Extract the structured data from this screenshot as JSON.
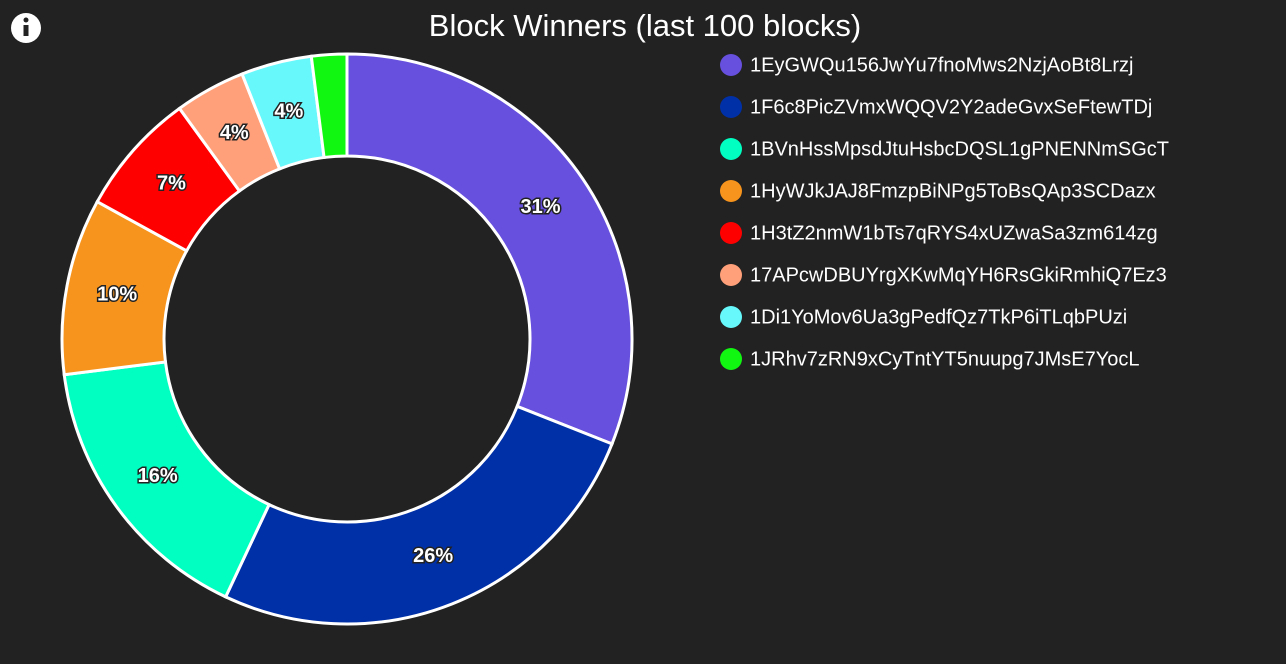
{
  "chart_data": {
    "type": "donut",
    "title": "Block Winners (last 100 blocks)",
    "categories": [
      "1EyGWQu156JwYu7fnoMws2NzjAoBt8Lrzj",
      "1F6c8PicZVmxWQQV2Y2adeGvxSeFtewTDj",
      "1BVnHssMpsdJtuHsbcDQSL1gPNENNmSGcT",
      "1HyWJkJAJ8FmzpBiNPg5ToBsQAp3SCDazx",
      "1H3tZ2nmW1bTs7qRYS4xUZwaSa3zm614zg",
      "17APcwDBUYrgXKwMqYH6RsGkiRmhiQ7Ez3",
      "1Di1YoMov6Ua3gPedfQz7TkP6iTLqbPUzi",
      "1JRhv7zRN9xCyTntYT5nuupg7JMsE7YocL"
    ],
    "values": [
      31,
      26,
      16,
      10,
      7,
      4,
      4,
      2
    ],
    "value_labels": [
      "31%",
      "26%",
      "16%",
      "10%",
      "7%",
      "4%",
      "4%",
      null
    ],
    "colors": [
      "#6650dd",
      "#0030a8",
      "#00ffc0",
      "#f7941d",
      "#ff0000",
      "#ffa07a",
      "#66f8fb",
      "#11f711"
    ],
    "legend": "right"
  }
}
